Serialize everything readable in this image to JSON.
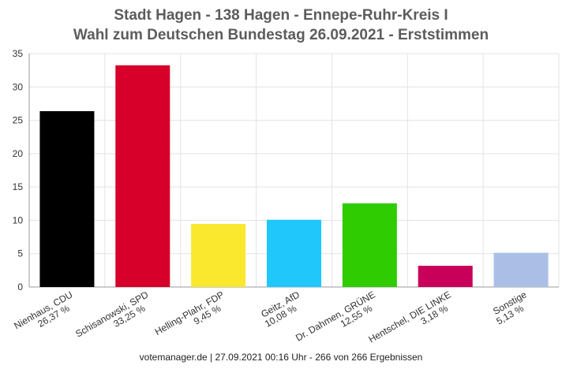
{
  "chart_data": {
    "type": "bar",
    "title": "Stadt Hagen - 138 Hagen - Ennepe-Ruhr-Kreis I",
    "subtitle": "Wahl zum Deutschen Bundestag 26.09.2021  - Erststimmen",
    "categories": [
      "Nienhaus, CDU",
      "Schisanowski, SPD",
      "Helling-Plahr, FDP",
      "Geitz, AfD",
      "Dr. Dahmen, GRÜNE",
      "Hentschel, DIE LINKE",
      "Sonstige"
    ],
    "values": [
      26.37,
      33.25,
      9.45,
      10.08,
      12.55,
      3.18,
      5.13
    ],
    "value_labels": [
      "26,37 %",
      "33,25 %",
      "9,45 %",
      "10,08 %",
      "12,55 %",
      "3,18 %",
      "5,13 %"
    ],
    "colors": [
      "#000000",
      "#d6002a",
      "#f9e82e",
      "#1fc7fb",
      "#2ecc00",
      "#c8005a",
      "#abbfe6"
    ],
    "ylim": [
      0,
      35
    ],
    "yticks": [
      "0",
      "5",
      "10",
      "15",
      "20",
      "25",
      "30",
      "35"
    ],
    "ytick_values": [
      0,
      5,
      10,
      15,
      20,
      25,
      30,
      35
    ],
    "grid": true,
    "xlabel": "",
    "ylabel": ""
  },
  "footer": "votemanager.de | 27.09.2021 00:16 Uhr - 266 von 266 Ergebnissen"
}
